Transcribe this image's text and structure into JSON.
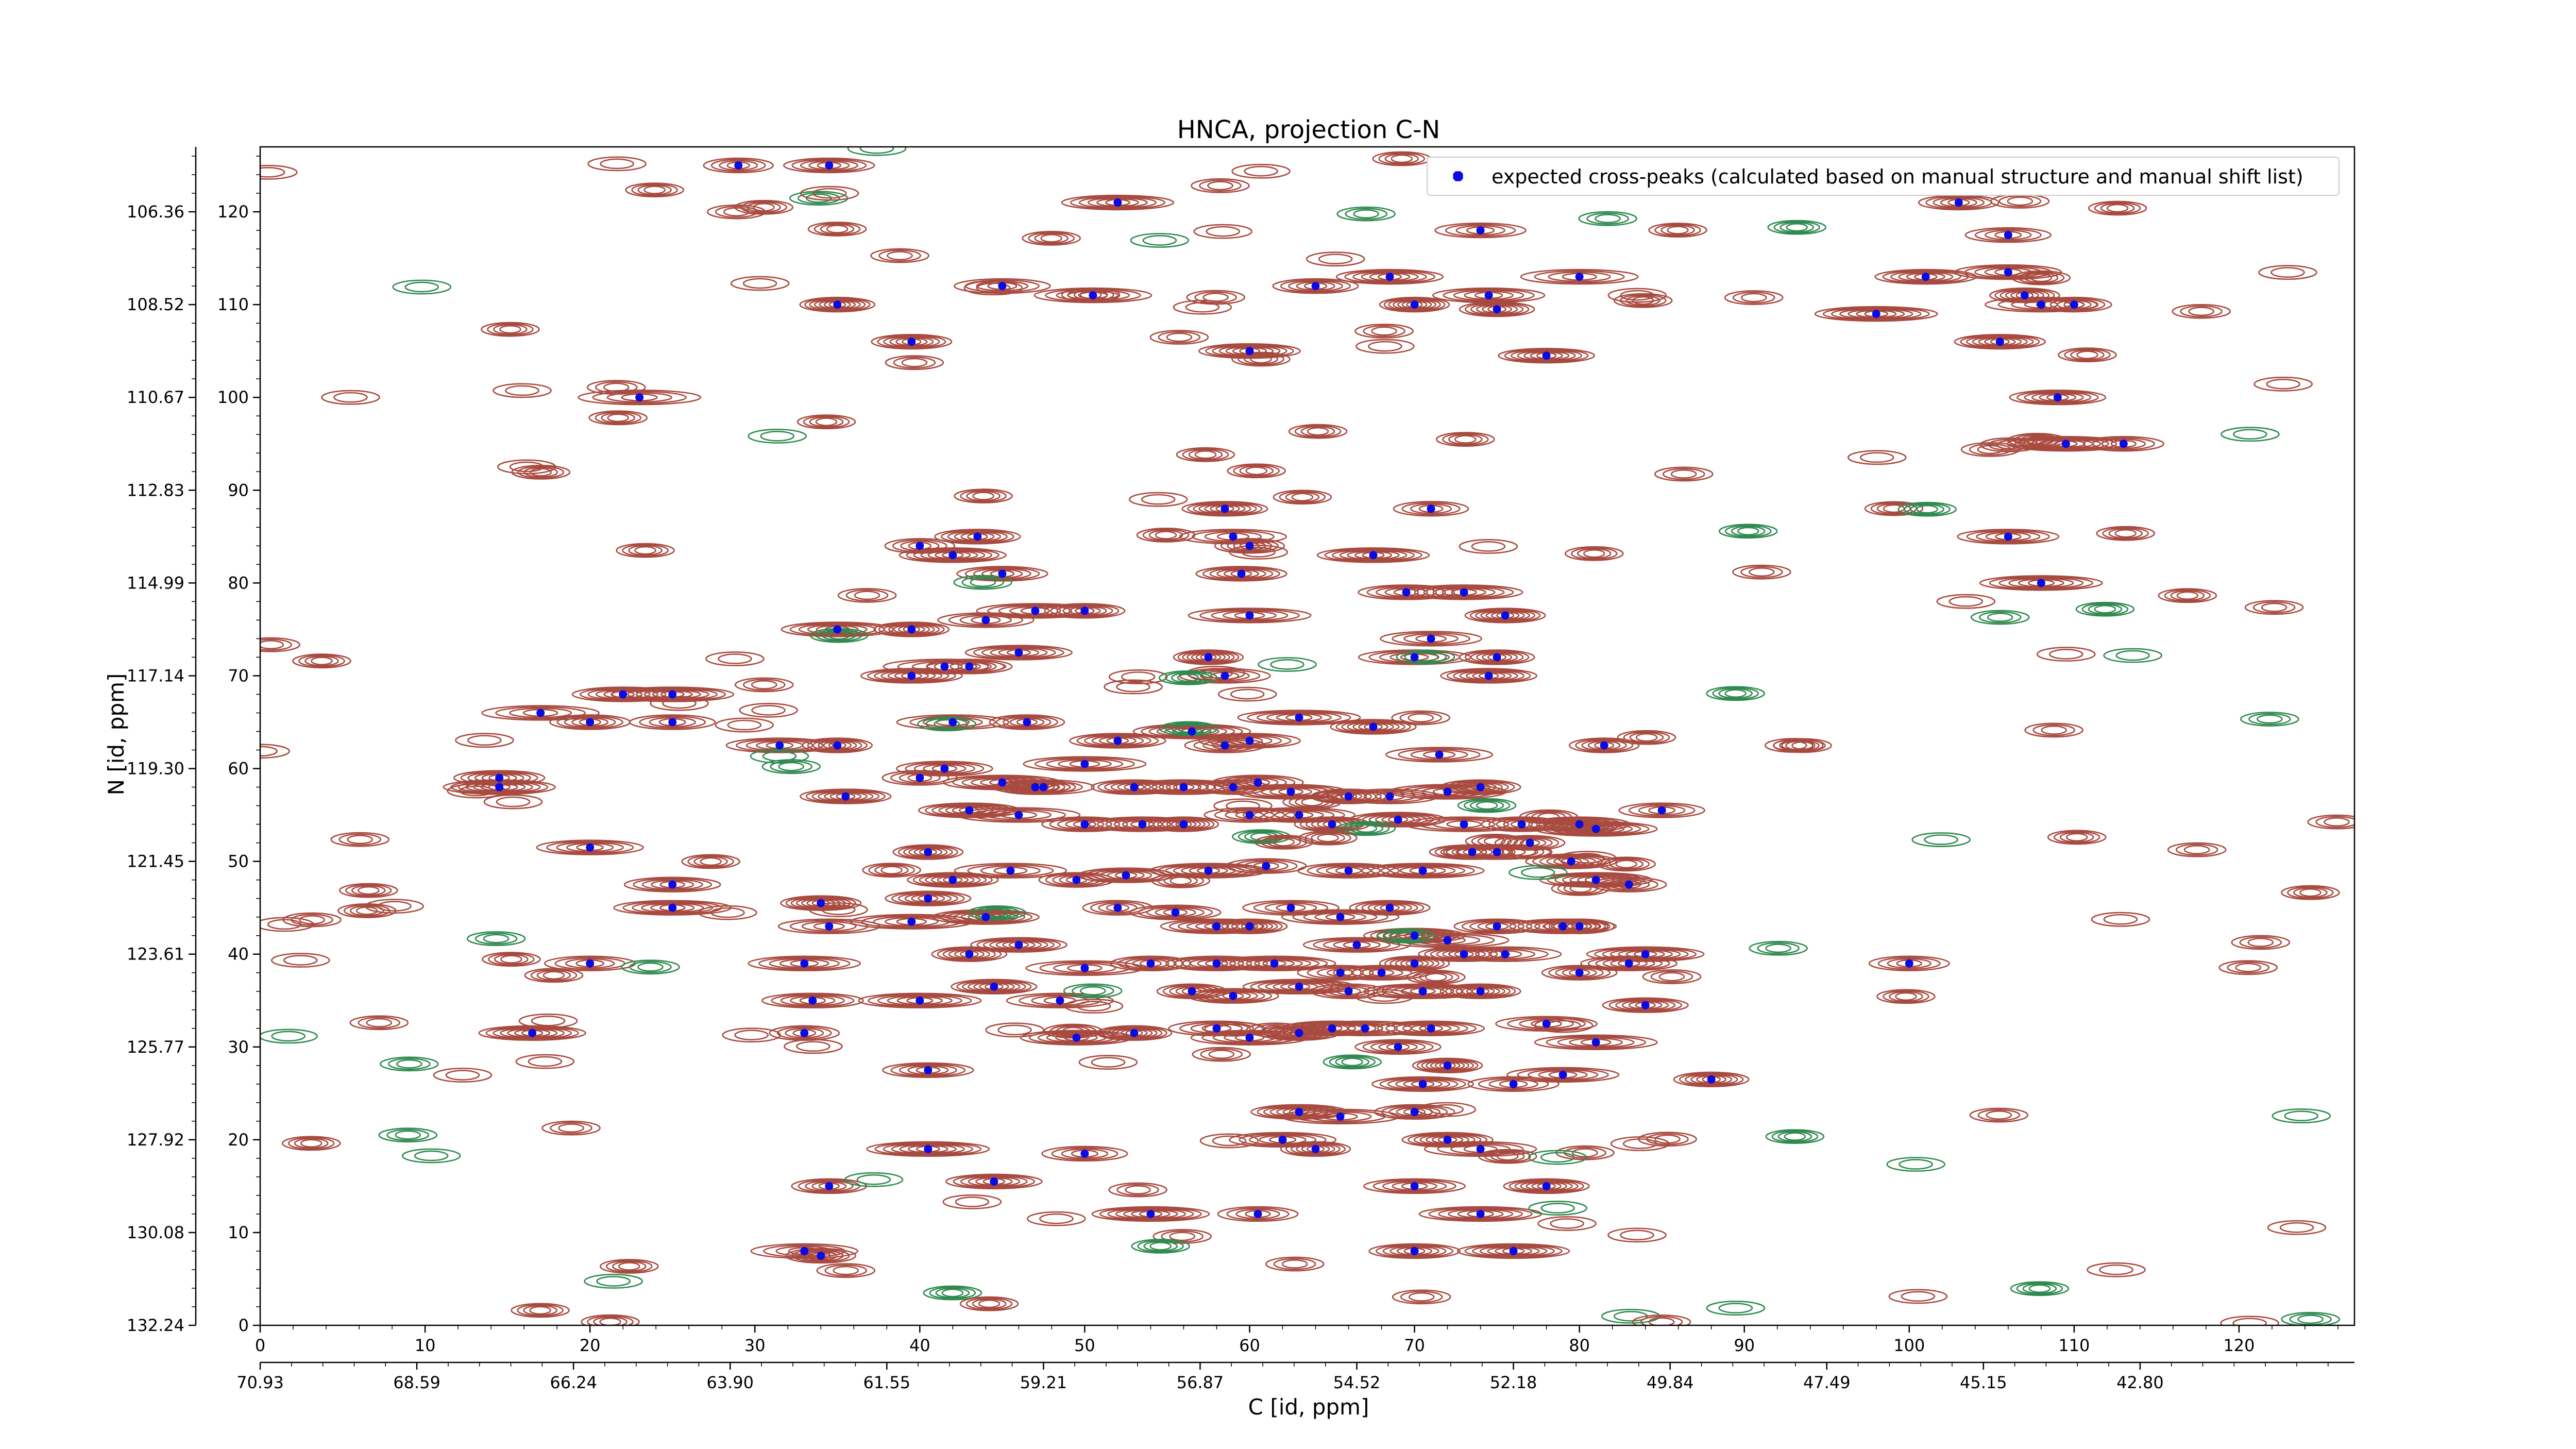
{
  "chart_data": {
    "type": "scatter",
    "title": "HNCA, projection C-N",
    "xlabel": "C [id, ppm]",
    "ylabel": "N [id, ppm]",
    "xlim": [
      0,
      127
    ],
    "ylim": [
      0,
      127
    ],
    "x_ticks": [
      0,
      10,
      20,
      30,
      40,
      50,
      60,
      70,
      80,
      90,
      100,
      110,
      120
    ],
    "y_ticks": [
      0,
      10,
      20,
      30,
      40,
      50,
      60,
      70,
      80,
      90,
      100,
      110,
      120
    ],
    "x_secondary_ticks": [
      {
        "at": 0,
        "label": "70.93"
      },
      {
        "at": 9.5,
        "label": "68.59"
      },
      {
        "at": 19,
        "label": "66.24"
      },
      {
        "at": 28.5,
        "label": "63.90"
      },
      {
        "at": 38,
        "label": "61.55"
      },
      {
        "at": 47.5,
        "label": "59.21"
      },
      {
        "at": 57,
        "label": "56.87"
      },
      {
        "at": 66.5,
        "label": "54.52"
      },
      {
        "at": 76,
        "label": "52.18"
      },
      {
        "at": 85.5,
        "label": "49.84"
      },
      {
        "at": 95,
        "label": "47.49"
      },
      {
        "at": 104.5,
        "label": "45.15"
      },
      {
        "at": 114,
        "label": "42.80"
      }
    ],
    "y_secondary_ticks": [
      {
        "at": 0,
        "label": "132.24"
      },
      {
        "at": 10,
        "label": "130.08"
      },
      {
        "at": 20,
        "label": "127.92"
      },
      {
        "at": 30,
        "label": "125.77"
      },
      {
        "at": 40,
        "label": "123.61"
      },
      {
        "at": 50,
        "label": "121.45"
      },
      {
        "at": 60,
        "label": "119.30"
      },
      {
        "at": 70,
        "label": "117.14"
      },
      {
        "at": 80,
        "label": "114.99"
      },
      {
        "at": 90,
        "label": "112.83"
      },
      {
        "at": 100,
        "label": "110.67"
      },
      {
        "at": 110,
        "label": "108.52"
      },
      {
        "at": 120,
        "label": "106.36"
      }
    ],
    "legend": {
      "placement": "top-right",
      "label": "expected cross-peaks (calculated based on manual structure and manual shift list)"
    },
    "grid": false,
    "colors": {
      "peaks": "#0a0ae6",
      "positive_contours": "#a84a3f",
      "negative_contours": "#2f8a4f"
    },
    "series": [
      {
        "points": [
          [
            29,
            125
          ],
          [
            34.5,
            125
          ],
          [
            52,
            121
          ],
          [
            35,
            110
          ],
          [
            45,
            112
          ],
          [
            50.5,
            111
          ],
          [
            39.5,
            106
          ],
          [
            60,
            105
          ],
          [
            23,
            100
          ],
          [
            64,
            112
          ],
          [
            68.5,
            113
          ],
          [
            70,
            110
          ],
          [
            74,
            118
          ],
          [
            74.5,
            111
          ],
          [
            75,
            109.5
          ],
          [
            78,
            104.5
          ],
          [
            80,
            113
          ],
          [
            103,
            121
          ],
          [
            101,
            113
          ],
          [
            98,
            109
          ],
          [
            106,
            117.5
          ],
          [
            106,
            113.5
          ],
          [
            107,
            111
          ],
          [
            105.5,
            106
          ],
          [
            108,
            110
          ],
          [
            110,
            110
          ],
          [
            109,
            100
          ],
          [
            109.5,
            95
          ],
          [
            113,
            95
          ],
          [
            106,
            85
          ],
          [
            108,
            80
          ],
          [
            58.5,
            88
          ],
          [
            59,
            85
          ],
          [
            60,
            84
          ],
          [
            59.5,
            81
          ],
          [
            67.5,
            83
          ],
          [
            71,
            88
          ],
          [
            69.5,
            79
          ],
          [
            73,
            79
          ],
          [
            75.5,
            76.5
          ],
          [
            71,
            74
          ],
          [
            60,
            76.5
          ],
          [
            43.5,
            85
          ],
          [
            42,
            83
          ],
          [
            40,
            84
          ],
          [
            45,
            81
          ],
          [
            35,
            75
          ],
          [
            39.5,
            75
          ],
          [
            44,
            76
          ],
          [
            47,
            77
          ],
          [
            50,
            77
          ],
          [
            39.5,
            70
          ],
          [
            41.5,
            71
          ],
          [
            43,
            71
          ],
          [
            46,
            72.5
          ],
          [
            57.5,
            72
          ],
          [
            58.5,
            70
          ],
          [
            70,
            72
          ],
          [
            75,
            72
          ],
          [
            74.5,
            70
          ],
          [
            17,
            66
          ],
          [
            20,
            65
          ],
          [
            22,
            68
          ],
          [
            25,
            68
          ],
          [
            25,
            65
          ],
          [
            31.5,
            62.5
          ],
          [
            35,
            62.5
          ],
          [
            35.5,
            57
          ],
          [
            42,
            65
          ],
          [
            46.5,
            65
          ],
          [
            52,
            63
          ],
          [
            56.5,
            64
          ],
          [
            58.5,
            62.5
          ],
          [
            60,
            63
          ],
          [
            63,
            65.5
          ],
          [
            67.5,
            64.5
          ],
          [
            71.5,
            61.5
          ],
          [
            81.5,
            62.5
          ],
          [
            14.5,
            59
          ],
          [
            14.5,
            58
          ],
          [
            40,
            59
          ],
          [
            41.5,
            60
          ],
          [
            45,
            58.5
          ],
          [
            47,
            58
          ],
          [
            47.5,
            58
          ],
          [
            50,
            60.5
          ],
          [
            53,
            58
          ],
          [
            56,
            58
          ],
          [
            59,
            58
          ],
          [
            60.5,
            58.5
          ],
          [
            62.5,
            57.5
          ],
          [
            66,
            57
          ],
          [
            68.5,
            57
          ],
          [
            72,
            57.5
          ],
          [
            74,
            58
          ],
          [
            43,
            55.5
          ],
          [
            46,
            55
          ],
          [
            50,
            54
          ],
          [
            53.5,
            54
          ],
          [
            56,
            54
          ],
          [
            60,
            55
          ],
          [
            63,
            55
          ],
          [
            65,
            54
          ],
          [
            69,
            54.5
          ],
          [
            73,
            54
          ],
          [
            76.5,
            54
          ],
          [
            80,
            54
          ],
          [
            81,
            53.5
          ],
          [
            85,
            55.5
          ],
          [
            20,
            51.5
          ],
          [
            40.5,
            51
          ],
          [
            42,
            48
          ],
          [
            45.5,
            49
          ],
          [
            49.5,
            48
          ],
          [
            52.5,
            48.5
          ],
          [
            57.5,
            49
          ],
          [
            61,
            49.5
          ],
          [
            66,
            49
          ],
          [
            70.5,
            49
          ],
          [
            73.5,
            51
          ],
          [
            75,
            51
          ],
          [
            77,
            52
          ],
          [
            79.5,
            50
          ],
          [
            81,
            48
          ],
          [
            83,
            47.5
          ],
          [
            25,
            47.5
          ],
          [
            25,
            45
          ],
          [
            34,
            45.5
          ],
          [
            34.5,
            43
          ],
          [
            39.5,
            43.5
          ],
          [
            40.5,
            46
          ],
          [
            44,
            44
          ],
          [
            52,
            45
          ],
          [
            55.5,
            44.5
          ],
          [
            58,
            43
          ],
          [
            60,
            43
          ],
          [
            62.5,
            45
          ],
          [
            65.5,
            44
          ],
          [
            68.5,
            45
          ],
          [
            70,
            42
          ],
          [
            72,
            41.5
          ],
          [
            75,
            43
          ],
          [
            79,
            43
          ],
          [
            80,
            43
          ],
          [
            20,
            39
          ],
          [
            33,
            39
          ],
          [
            43,
            40
          ],
          [
            46,
            41
          ],
          [
            50,
            38.5
          ],
          [
            54,
            39
          ],
          [
            58,
            39
          ],
          [
            61.5,
            39
          ],
          [
            65.5,
            38
          ],
          [
            66.5,
            41
          ],
          [
            70,
            39
          ],
          [
            73,
            40
          ],
          [
            75.5,
            40
          ],
          [
            80,
            38
          ],
          [
            83,
            39
          ],
          [
            84,
            40
          ],
          [
            100,
            39
          ],
          [
            33.5,
            35
          ],
          [
            40,
            35
          ],
          [
            44.5,
            36.5
          ],
          [
            48.5,
            35
          ],
          [
            56.5,
            36
          ],
          [
            59,
            35.5
          ],
          [
            63,
            36.5
          ],
          [
            66,
            36
          ],
          [
            68,
            38
          ],
          [
            70.5,
            36
          ],
          [
            74,
            36
          ],
          [
            78,
            32.5
          ],
          [
            81,
            30.5
          ],
          [
            84,
            34.5
          ],
          [
            16.5,
            31.5
          ],
          [
            33,
            31.5
          ],
          [
            40.5,
            27.5
          ],
          [
            49.5,
            31
          ],
          [
            53,
            31.5
          ],
          [
            58,
            32
          ],
          [
            60,
            31
          ],
          [
            63,
            31.5
          ],
          [
            65,
            32
          ],
          [
            67,
            32
          ],
          [
            69,
            30
          ],
          [
            71,
            32
          ],
          [
            72,
            28
          ],
          [
            76,
            26
          ],
          [
            79,
            27
          ],
          [
            88,
            26.5
          ],
          [
            63,
            23
          ],
          [
            65.5,
            22.5
          ],
          [
            70,
            23
          ],
          [
            70.5,
            26
          ],
          [
            40.5,
            19
          ],
          [
            50,
            18.5
          ],
          [
            62,
            20
          ],
          [
            64,
            19
          ],
          [
            72,
            20
          ],
          [
            74,
            19
          ],
          [
            34.5,
            15
          ],
          [
            44.5,
            15.5
          ],
          [
            54,
            12
          ],
          [
            60.5,
            12
          ],
          [
            70,
            15
          ],
          [
            74,
            12
          ],
          [
            78,
            15
          ],
          [
            33,
            8
          ],
          [
            34,
            7.5
          ],
          [
            70,
            8
          ],
          [
            76,
            8
          ]
        ]
      }
    ]
  }
}
